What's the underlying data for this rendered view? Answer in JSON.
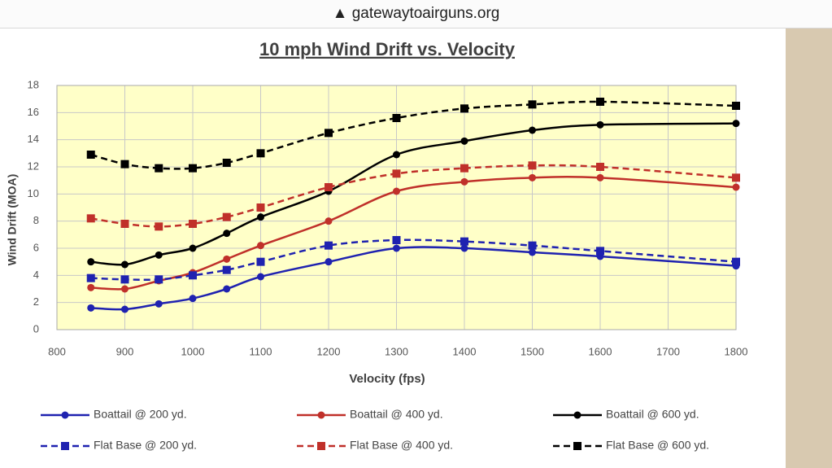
{
  "address_bar": {
    "url": "▲ gatewaytoairguns.org"
  },
  "chart_data": {
    "type": "line",
    "title": "10 mph Wind Drift vs. Velocity",
    "x_label": "Velocity (fps)",
    "y_label": "Wind Drift (MOA)",
    "x": [
      850,
      900,
      950,
      1000,
      1050,
      1100,
      1200,
      1300,
      1400,
      1500,
      1600,
      1800
    ],
    "xlim": [
      800,
      1800
    ],
    "xticks": [
      800,
      900,
      1000,
      1100,
      1200,
      1300,
      1400,
      1500,
      1600,
      1700,
      1800
    ],
    "ylim": [
      0,
      18
    ],
    "yticks": [
      0,
      2,
      4,
      6,
      8,
      10,
      12,
      14,
      16,
      18
    ],
    "grid": true,
    "plot_background": "#ffffc8",
    "legend": "bottom",
    "series": [
      {
        "name": "Boattail @ 200 yd.",
        "color": "#1f22b0",
        "line_style": "solid",
        "marker": "circle",
        "values": [
          1.6,
          1.5,
          1.9,
          2.3,
          3.0,
          3.9,
          5.0,
          6.0,
          6.0,
          5.7,
          5.4,
          4.7
        ]
      },
      {
        "name": "Boattail @ 400 yd.",
        "color": "#c0302a",
        "line_style": "solid",
        "marker": "circle",
        "values": [
          3.1,
          3.0,
          3.6,
          4.2,
          5.2,
          6.2,
          8.0,
          10.2,
          10.9,
          11.2,
          11.2,
          10.5
        ]
      },
      {
        "name": "Boattail @ 600 yd.",
        "color": "#000000",
        "line_style": "solid",
        "marker": "circle",
        "values": [
          5.0,
          4.8,
          5.5,
          6.0,
          7.1,
          8.3,
          10.2,
          12.9,
          13.9,
          14.7,
          15.1,
          15.2
        ]
      },
      {
        "name": "Flat Base @ 200 yd.",
        "color": "#1f22b0",
        "line_style": "dashed",
        "marker": "square",
        "values": [
          3.8,
          3.7,
          3.7,
          4.0,
          4.4,
          5.0,
          6.2,
          6.6,
          6.5,
          6.2,
          5.8,
          5.0
        ]
      },
      {
        "name": "Flat Base @ 400 yd.",
        "color": "#c0302a",
        "line_style": "dashed",
        "marker": "square",
        "values": [
          8.2,
          7.8,
          7.6,
          7.8,
          8.3,
          9.0,
          10.5,
          11.5,
          11.9,
          12.1,
          12.0,
          11.2
        ]
      },
      {
        "name": "Flat Base @ 600 yd.",
        "color": "#000000",
        "line_style": "dashed",
        "marker": "square",
        "values": [
          12.9,
          12.2,
          11.9,
          11.9,
          12.3,
          13.0,
          14.5,
          15.6,
          16.3,
          16.6,
          16.8,
          16.5
        ]
      }
    ]
  }
}
